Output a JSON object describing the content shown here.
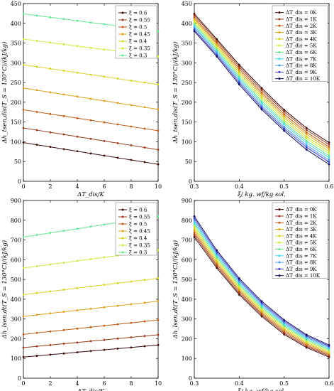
{
  "chart_data": [
    {
      "type": "line",
      "panel": "top-left",
      "xlabel": "ΔT_dis/K",
      "ylabel": "Δh_tsen,dis(T_S = 130°C)/(kJ/kg)",
      "xlim": [
        0,
        10
      ],
      "ylim": [
        0,
        450
      ],
      "xticks": [
        0,
        2,
        4,
        6,
        8,
        10
      ],
      "yticks": [
        0,
        50,
        100,
        150,
        200,
        250,
        300,
        350,
        400,
        450
      ],
      "legend": "top-right",
      "x": [
        0,
        1,
        2,
        3,
        4,
        5,
        6,
        7,
        8,
        9,
        10
      ],
      "series": [
        {
          "name": "ξ = 0.6",
          "color": "#3a0606",
          "start": 98,
          "end": 43
        },
        {
          "name": "ξ = 0.55",
          "color": "#9b3a1a",
          "start": 135,
          "end": 80
        },
        {
          "name": "ξ = 0.5",
          "color": "#c25a12",
          "start": 181,
          "end": 128
        },
        {
          "name": "ξ = 0.45",
          "color": "#dca018",
          "start": 236,
          "end": 182
        },
        {
          "name": "ξ = 0.4",
          "color": "#d8d224",
          "start": 295,
          "end": 245
        },
        {
          "name": "ξ = 0.35",
          "color": "#c8ee44",
          "start": 360,
          "end": 316
        },
        {
          "name": "ξ = 0.3",
          "color": "#60e890",
          "start": 424,
          "end": 380
        }
      ]
    },
    {
      "type": "line",
      "panel": "top-right",
      "xlabel": "ξ/ kg. wf/kg sol.",
      "ylabel": "Δh_tsen,dis(T_S = 130°C)/(kJ/kg)",
      "xlim": [
        0.3,
        0.6
      ],
      "ylim": [
        0,
        450
      ],
      "xticks": [
        0.3,
        0.4,
        0.5,
        0.6
      ],
      "yticks": [
        0,
        50,
        100,
        150,
        200,
        250,
        300,
        350,
        400,
        450
      ],
      "legend": "top-right",
      "x": [
        0.3,
        0.35,
        0.4,
        0.45,
        0.5,
        0.55,
        0.6
      ],
      "series": [
        {
          "name": "ΔT_dis = 0K",
          "color": "#3a0606",
          "values": [
            424,
            360,
            295,
            236,
            181,
            135,
            98
          ]
        },
        {
          "name": "ΔT_dis = 1K",
          "color": "#9b3a1a",
          "values": [
            420,
            356,
            290,
            231,
            176,
            130,
            93
          ]
        },
        {
          "name": "ΔT_dis = 2K",
          "color": "#c25a12",
          "values": [
            415,
            351,
            285,
            225,
            170,
            124,
            87
          ]
        },
        {
          "name": "ΔT_dis = 3K",
          "color": "#dca018",
          "values": [
            411,
            347,
            280,
            220,
            165,
            119,
            82
          ]
        },
        {
          "name": "ΔT_dis = 4K",
          "color": "#d8d224",
          "values": [
            407,
            342,
            275,
            214,
            160,
            113,
            76
          ]
        },
        {
          "name": "ΔT_dis = 5K",
          "color": "#c8ee44",
          "values": [
            402,
            338,
            270,
            209,
            154,
            108,
            71
          ]
        },
        {
          "name": "ΔT_dis = 6K",
          "color": "#60e890",
          "values": [
            398,
            334,
            265,
            203,
            149,
            102,
            65
          ]
        },
        {
          "name": "ΔT_dis = 7K",
          "color": "#44d8e8",
          "values": [
            393,
            329,
            260,
            198,
            144,
            97,
            60
          ]
        },
        {
          "name": "ΔT_dis = 8K",
          "color": "#4a9ae8",
          "values": [
            389,
            325,
            255,
            192,
            138,
            91,
            54
          ]
        },
        {
          "name": "ΔT_dis = 9K",
          "color": "#3a3ad0",
          "values": [
            384,
            320,
            250,
            187,
            133,
            86,
            49
          ]
        },
        {
          "name": "ΔT_dis = 10K",
          "color": "#101060",
          "values": [
            380,
            316,
            245,
            182,
            128,
            80,
            43
          ]
        }
      ]
    },
    {
      "type": "line",
      "panel": "bottom-left",
      "xlabel": "ΔT_dis/K",
      "ylabel": "Δh_lsen,dt(T_S = 130°C)/(kJ/kg)",
      "xlim": [
        0,
        10
      ],
      "ylim": [
        0,
        900
      ],
      "xticks": [
        0,
        2,
        4,
        6,
        8,
        10
      ],
      "yticks": [
        0,
        100,
        200,
        300,
        400,
        500,
        600,
        700,
        800,
        900
      ],
      "legend": "top-right",
      "x": [
        0,
        1,
        2,
        3,
        4,
        5,
        6,
        7,
        8,
        9,
        10
      ],
      "series": [
        {
          "name": "ξ = 0.6",
          "color": "#3a0606",
          "start": 107,
          "end": 168
        },
        {
          "name": "ξ = 0.55",
          "color": "#9b3a1a",
          "start": 155,
          "end": 220
        },
        {
          "name": "ξ = 0.5",
          "color": "#c25a12",
          "start": 222,
          "end": 295
        },
        {
          "name": "ξ = 0.45",
          "color": "#dca018",
          "start": 313,
          "end": 390
        },
        {
          "name": "ξ = 0.4",
          "color": "#d8d224",
          "start": 423,
          "end": 506
        },
        {
          "name": "ξ = 0.35",
          "color": "#c8ee44",
          "start": 558,
          "end": 648
        },
        {
          "name": "ξ = 0.3",
          "color": "#60e890",
          "start": 715,
          "end": 820
        }
      ]
    },
    {
      "type": "line",
      "panel": "bottom-right",
      "xlabel": "ξ/ kg. wf/kg sol.",
      "ylabel": "Δh_lsen,dt(T_S = 130°C)/(kJ/kg)",
      "xlim": [
        0.3,
        0.6
      ],
      "ylim": [
        0,
        900
      ],
      "xticks": [
        0.3,
        0.4,
        0.5,
        0.6
      ],
      "yticks": [
        0,
        100,
        200,
        300,
        400,
        500,
        600,
        700,
        800,
        900
      ],
      "legend": "top-right",
      "x": [
        0.3,
        0.35,
        0.4,
        0.45,
        0.5,
        0.55,
        0.6
      ],
      "series": [
        {
          "name": "ΔT_dis = 0K",
          "color": "#3a0606",
          "values": [
            715,
            558,
            423,
            313,
            222,
            155,
            107
          ]
        },
        {
          "name": "ΔT_dis = 1K",
          "color": "#9b3a1a",
          "values": [
            726,
            567,
            431,
            321,
            229,
            162,
            113
          ]
        },
        {
          "name": "ΔT_dis = 2K",
          "color": "#c25a12",
          "values": [
            736,
            576,
            440,
            328,
            237,
            168,
            119
          ]
        },
        {
          "name": "ΔT_dis = 3K",
          "color": "#dca018",
          "values": [
            747,
            585,
            448,
            336,
            244,
            175,
            125
          ]
        },
        {
          "name": "ΔT_dis = 4K",
          "color": "#d8d224",
          "values": [
            757,
            594,
            456,
            344,
            251,
            181,
            131
          ]
        },
        {
          "name": "ΔT_dis = 5K",
          "color": "#c8ee44",
          "values": [
            768,
            603,
            465,
            352,
            259,
            188,
            138
          ]
        },
        {
          "name": "ΔT_dis = 6K",
          "color": "#60e890",
          "values": [
            778,
            612,
            473,
            359,
            266,
            194,
            144
          ]
        },
        {
          "name": "ΔT_dis = 7K",
          "color": "#44d8e8",
          "values": [
            789,
            621,
            481,
            367,
            273,
            201,
            150
          ]
        },
        {
          "name": "ΔT_dis = 8K",
          "color": "#4a9ae8",
          "values": [
            799,
            630,
            490,
            375,
            280,
            207,
            156
          ]
        },
        {
          "name": "ΔT_dis = 9K",
          "color": "#3a3ad0",
          "values": [
            810,
            639,
            498,
            382,
            288,
            214,
            162
          ]
        },
        {
          "name": "ΔT_dis = 10K",
          "color": "#101060",
          "values": [
            820,
            648,
            506,
            390,
            295,
            220,
            168
          ]
        }
      ]
    }
  ]
}
